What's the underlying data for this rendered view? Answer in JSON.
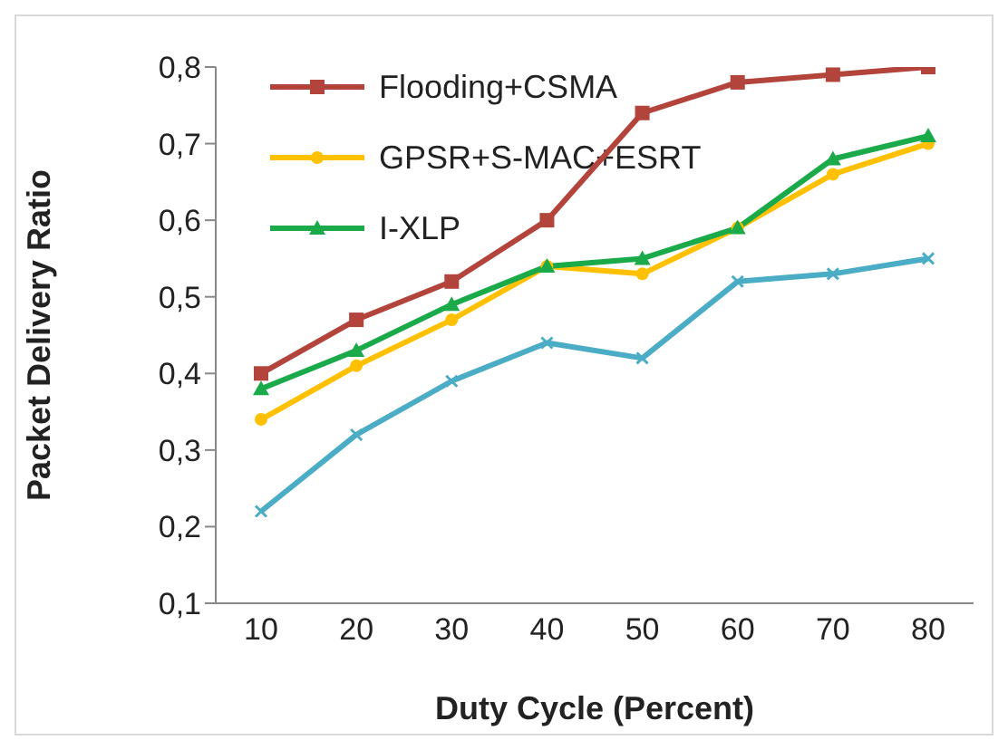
{
  "chart_data": {
    "type": "line",
    "xlabel": "Duty Cycle (Percent)",
    "ylabel": "Packet Delivery Ratio",
    "categories": [
      "10",
      "20",
      "30",
      "40",
      "50",
      "60",
      "70",
      "80"
    ],
    "series": [
      {
        "name": "Flooding+CSMA",
        "color": "#b3443b",
        "marker": "square",
        "values": [
          0.4,
          0.47,
          0.52,
          0.6,
          0.74,
          0.78,
          0.79,
          0.8
        ]
      },
      {
        "name": "GPSR+S-MAC+ESRT",
        "color": "#ffc000",
        "marker": "circle",
        "values": [
          0.34,
          0.41,
          0.47,
          0.54,
          0.53,
          0.59,
          0.66,
          0.7
        ]
      },
      {
        "name": "I-XLP",
        "color": "#1aaa4a",
        "marker": "triangle",
        "values": [
          0.38,
          0.43,
          0.49,
          0.54,
          0.55,
          0.59,
          0.68,
          0.71
        ]
      },
      {
        "color": "#4bacc6",
        "marker": "cross",
        "values": [
          0.22,
          0.32,
          0.39,
          0.44,
          0.42,
          0.52,
          0.53,
          0.55
        ]
      }
    ],
    "ylim": [
      0.1,
      0.8
    ],
    "yticks": [
      {
        "value": 0.1,
        "label": "0,1"
      },
      {
        "value": 0.2,
        "label": "0,2"
      },
      {
        "value": 0.3,
        "label": "0,3"
      },
      {
        "value": 0.4,
        "label": "0,4"
      },
      {
        "value": 0.5,
        "label": "0,5"
      },
      {
        "value": 0.6,
        "label": "0,6"
      },
      {
        "value": 0.7,
        "label": "0,7"
      },
      {
        "value": 0.8,
        "label": "0,8"
      }
    ],
    "grid": false,
    "legend": "top left",
    "line_style": "solid"
  }
}
